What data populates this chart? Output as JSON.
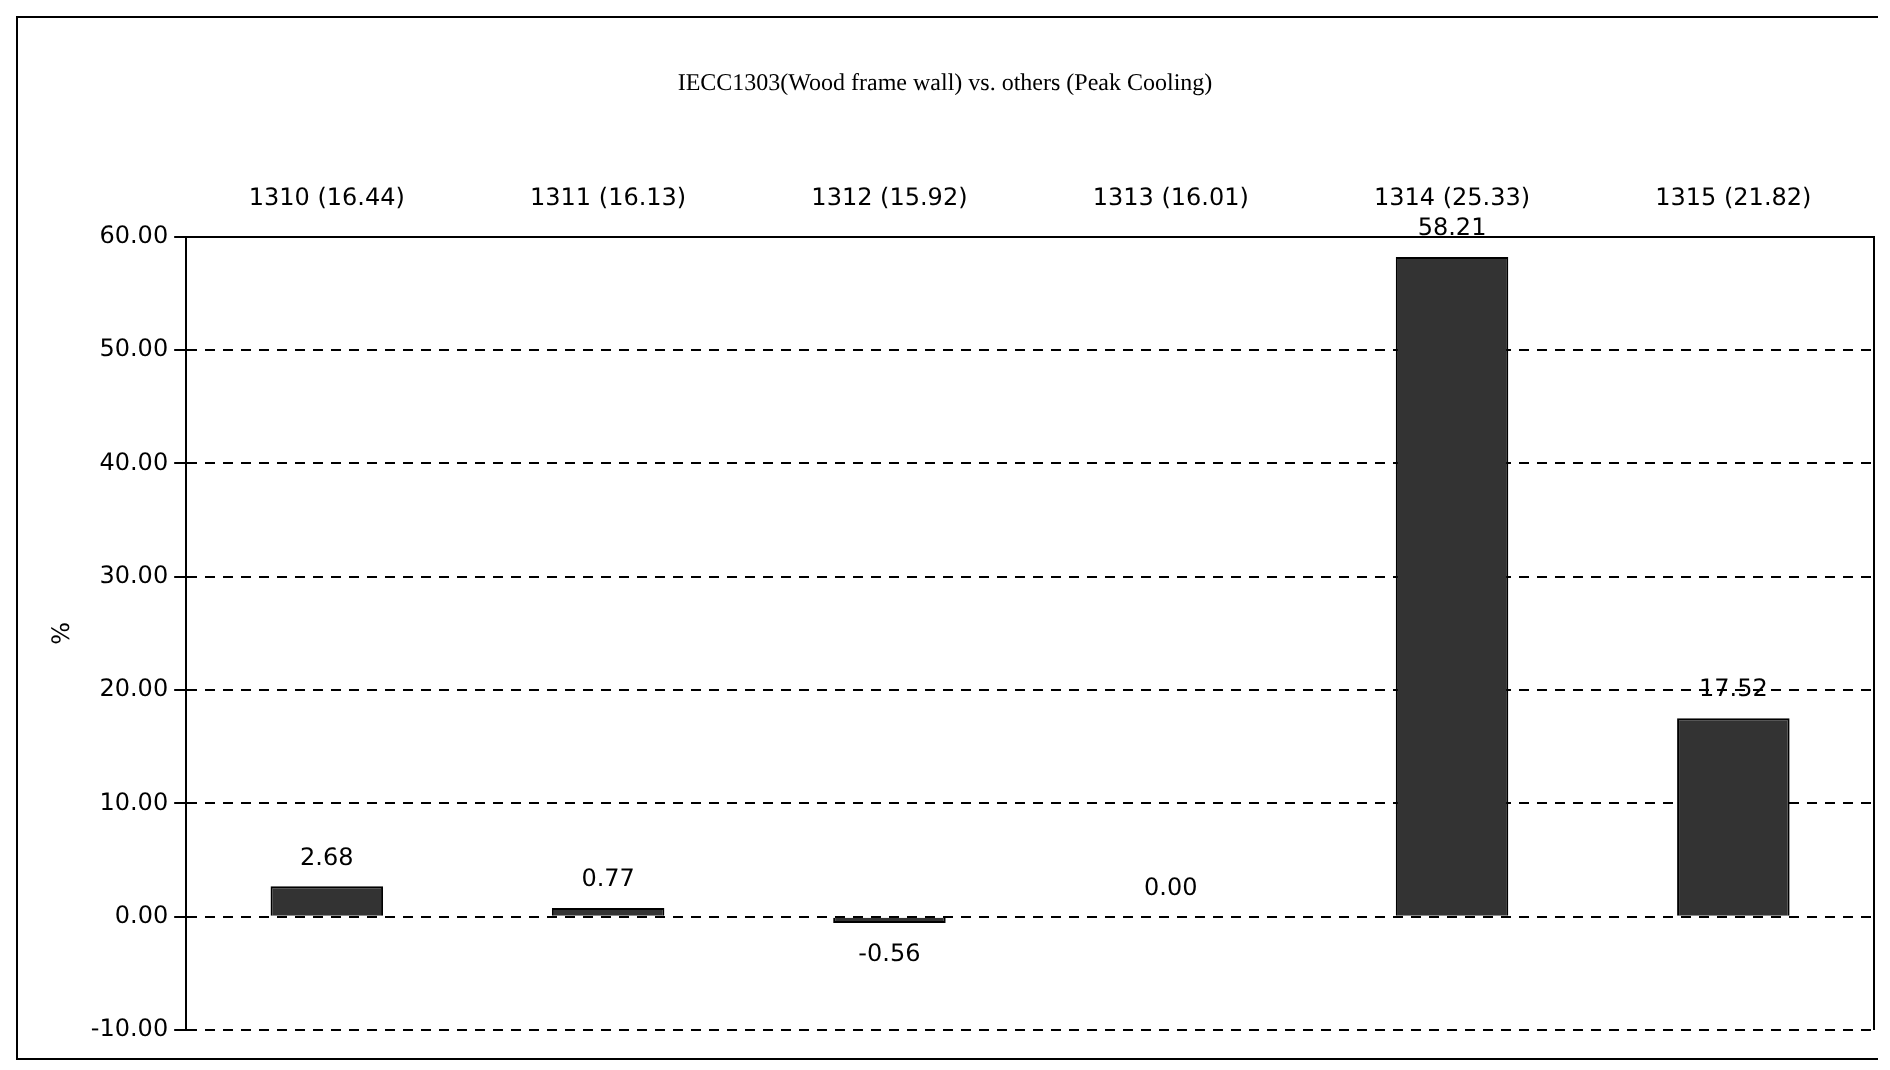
{
  "chart_data": {
    "type": "bar",
    "title": "IECC1303(Wood frame wall) vs. others (Peak Cooling)",
    "ylabel": "%",
    "categories": [
      "1310 (16.44)",
      "1311 (16.13)",
      "1312 (15.92)",
      "1313 (16.01)",
      "1314 (25.33)",
      "1315 (21.82)"
    ],
    "values": [
      2.68,
      0.77,
      -0.56,
      0.0,
      58.21,
      17.52
    ],
    "color": "#333333",
    "value_labels": [
      "2.68",
      "0.77",
      "-0.56",
      "0.00",
      "58.21",
      "17.52"
    ],
    "ylim": [
      -10,
      60
    ],
    "yticks": [
      {
        "value": -10,
        "label": "-10.00"
      },
      {
        "value": 0,
        "label": "0.00"
      },
      {
        "value": 10,
        "label": "10.00"
      },
      {
        "value": 20,
        "label": "20.00"
      },
      {
        "value": 30,
        "label": "30.00"
      },
      {
        "value": 40,
        "label": "40.00"
      },
      {
        "value": 50,
        "label": "50.00"
      },
      {
        "value": 60,
        "label": "60.00"
      }
    ],
    "grid": "y",
    "line_style": "dashed",
    "legend": false
  }
}
